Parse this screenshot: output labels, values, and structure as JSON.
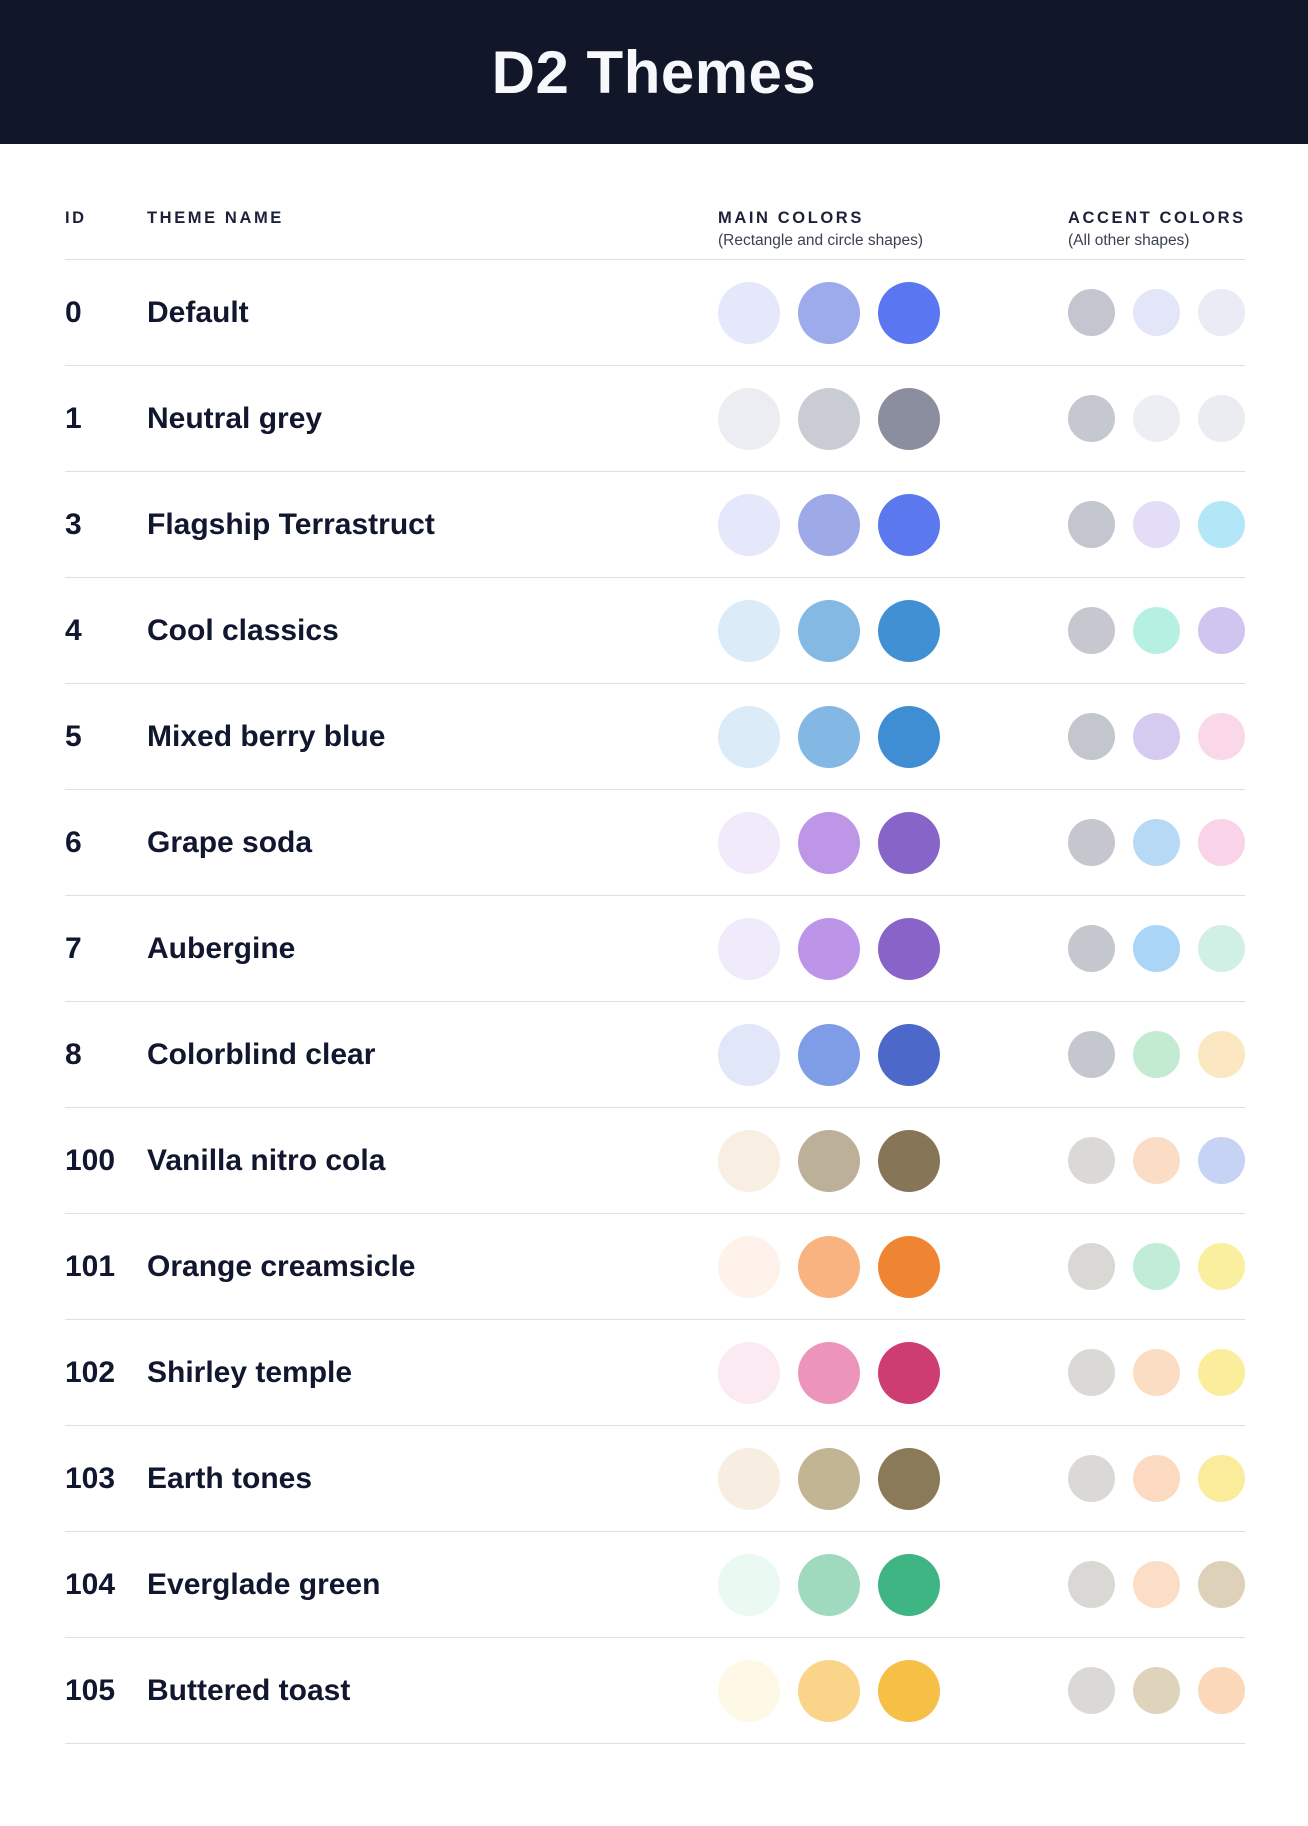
{
  "header": {
    "title": "D2 Themes"
  },
  "columns": {
    "id": {
      "label": "ID"
    },
    "name": {
      "label": "THEME NAME"
    },
    "main": {
      "label": "MAIN COLORS",
      "sublabel": "(Rectangle and circle shapes)"
    },
    "accent": {
      "label": "ACCENT COLORS",
      "sublabel": "(All other shapes)"
    }
  },
  "themes": [
    {
      "id": "0",
      "name": "Default",
      "main": [
        "#E5E8FA",
        "#9DAAEB",
        "#5A76F0"
      ],
      "accent": [
        "#C3C5CF",
        "#E3E6F8",
        "#E9EBF5"
      ]
    },
    {
      "id": "1",
      "name": "Neutral grey",
      "main": [
        "#EBEDF2",
        "#CACCD4",
        "#8A8E9E"
      ],
      "accent": [
        "#C6C8D1",
        "#EDEEF3",
        "#EAECF2"
      ]
    },
    {
      "id": "3",
      "name": "Flagship Terrastruct",
      "main": [
        "#E4E8FA",
        "#9EA9E7",
        "#5C78EF"
      ],
      "accent": [
        "#C4C6CF",
        "#E4DDF8",
        "#B3E6F6"
      ]
    },
    {
      "id": "4",
      "name": "Cool classics",
      "main": [
        "#DCEBF8",
        "#84B9E3",
        "#4090D3"
      ],
      "accent": [
        "#C6C7CF",
        "#B5F0E3",
        "#CFC5EF"
      ]
    },
    {
      "id": "5",
      "name": "Mixed berry blue",
      "main": [
        "#DCEBF8",
        "#84B8E4",
        "#3F8ED3"
      ],
      "accent": [
        "#C4C6CE",
        "#D5CBF1",
        "#FAD7E9"
      ]
    },
    {
      "id": "6",
      "name": "Grape soda",
      "main": [
        "#F1EAFA",
        "#BD96E8",
        "#8765C8"
      ],
      "accent": [
        "#C5C6CE",
        "#B6D9F6",
        "#F9D3E7"
      ]
    },
    {
      "id": "7",
      "name": "Aubergine",
      "main": [
        "#F0EBFA",
        "#BC95E8",
        "#8964C8"
      ],
      "accent": [
        "#C5C7CF",
        "#ABD5F6",
        "#D0EFE5"
      ]
    },
    {
      "id": "8",
      "name": "Colorblind clear",
      "main": [
        "#E1E6F8",
        "#7F9CE6",
        "#4C69C9"
      ],
      "accent": [
        "#C5C7CF",
        "#C3EBD2",
        "#FBE7C1"
      ]
    },
    {
      "id": "100",
      "name": "Vanilla nitro cola",
      "main": [
        "#F8EFE2",
        "#BCB098",
        "#867557"
      ],
      "accent": [
        "#DAD9D5",
        "#FBDCC5",
        "#C6D3F5"
      ]
    },
    {
      "id": "101",
      "name": "Orange creamsicle",
      "main": [
        "#FEF2EB",
        "#F9B381",
        "#EF8533"
      ],
      "accent": [
        "#DAD8D4",
        "#C1ECD8",
        "#FAEF9E"
      ]
    },
    {
      "id": "102",
      "name": "Shirley temple",
      "main": [
        "#FCEAF2",
        "#ED94BB",
        "#CE3D72"
      ],
      "accent": [
        "#DBD9D5",
        "#FBDDC3",
        "#FAEE9C"
      ]
    },
    {
      "id": "103",
      "name": "Earth tones",
      "main": [
        "#F7EDE0",
        "#C2B593",
        "#8A7A57"
      ],
      "accent": [
        "#DAD9D5",
        "#FBDAC1",
        "#FAEC9B"
      ]
    },
    {
      "id": "104",
      "name": "Everglade green",
      "main": [
        "#EAFAF3",
        "#9FDABE",
        "#3EB583"
      ],
      "accent": [
        "#D9D8D4",
        "#FCDDC5",
        "#DED1B9"
      ]
    },
    {
      "id": "105",
      "name": "Buttered toast",
      "main": [
        "#FEF8E6",
        "#F9D489",
        "#F6BF45"
      ],
      "accent": [
        "#DAD9D5",
        "#DED3BB",
        "#FBD8BA"
      ]
    }
  ],
  "colors": {
    "header_bg": "#111628",
    "title_text": "#F7F8FC",
    "heading_text": "#1B2138",
    "subheading_text": "#3A4150",
    "row_text": "#11172E",
    "divider": "#DCDFE9",
    "background": "#FFFFFF"
  }
}
